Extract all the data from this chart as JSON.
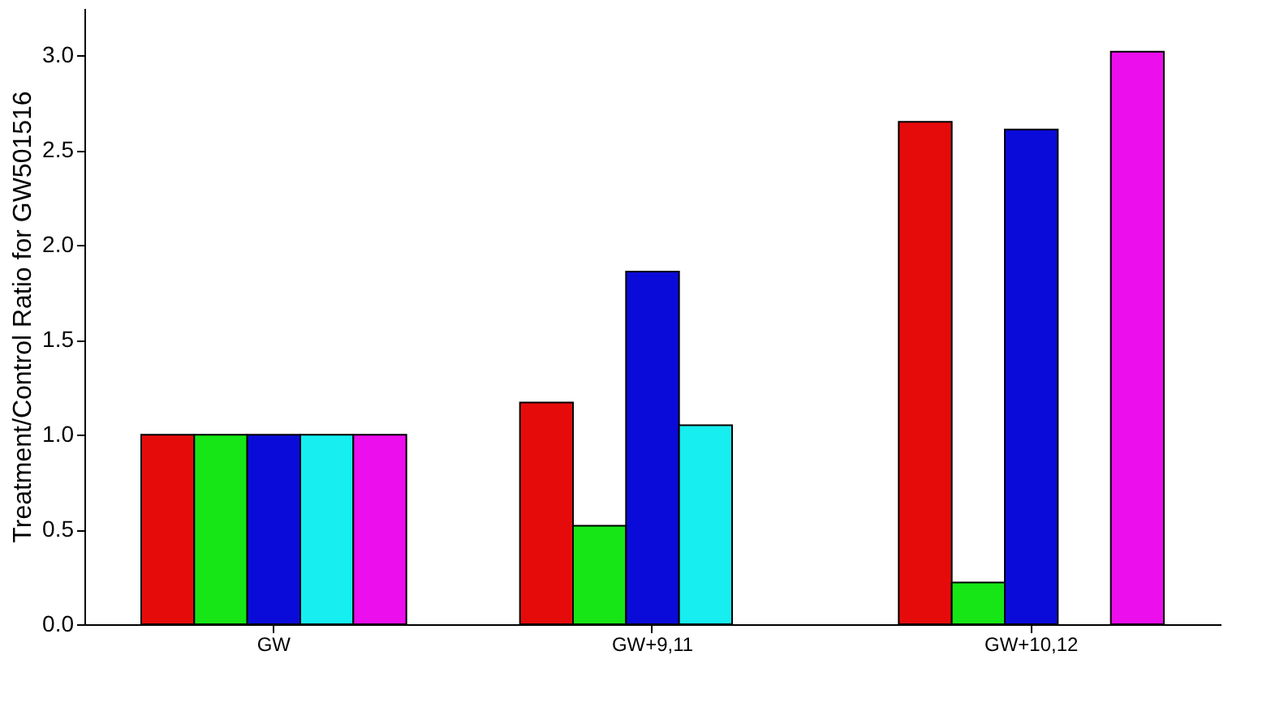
{
  "chart_data": {
    "type": "bar",
    "ylabel": "Treatment/Control Ratio for GW501516",
    "categories": [
      "GW",
      "GW+9,11",
      "GW+10,12"
    ],
    "series": [
      {
        "color": "#e60b0b",
        "values": [
          1.0,
          1.17,
          2.65
        ]
      },
      {
        "color": "#16e616",
        "values": [
          1.0,
          0.52,
          0.22
        ]
      },
      {
        "color": "#0b0bd9",
        "values": [
          1.0,
          1.86,
          2.61
        ]
      },
      {
        "color": "#16eef0",
        "values": [
          1.0,
          1.05,
          null
        ]
      },
      {
        "color": "#ec0eec",
        "values": [
          1.0,
          null,
          3.02
        ]
      }
    ],
    "ylim": [
      0,
      3.25
    ],
    "yticks": [
      {
        "value": 0,
        "label": "0.0"
      },
      {
        "value": 0.5,
        "label": "0.5"
      },
      {
        "value": 1,
        "label": "1.0"
      },
      {
        "value": 1.5,
        "label": "1.5"
      },
      {
        "value": 2,
        "label": "2.0"
      },
      {
        "value": 2.5,
        "label": "2.5"
      },
      {
        "value": 3,
        "label": "3.0"
      }
    ],
    "grid": false,
    "legend": false
  }
}
